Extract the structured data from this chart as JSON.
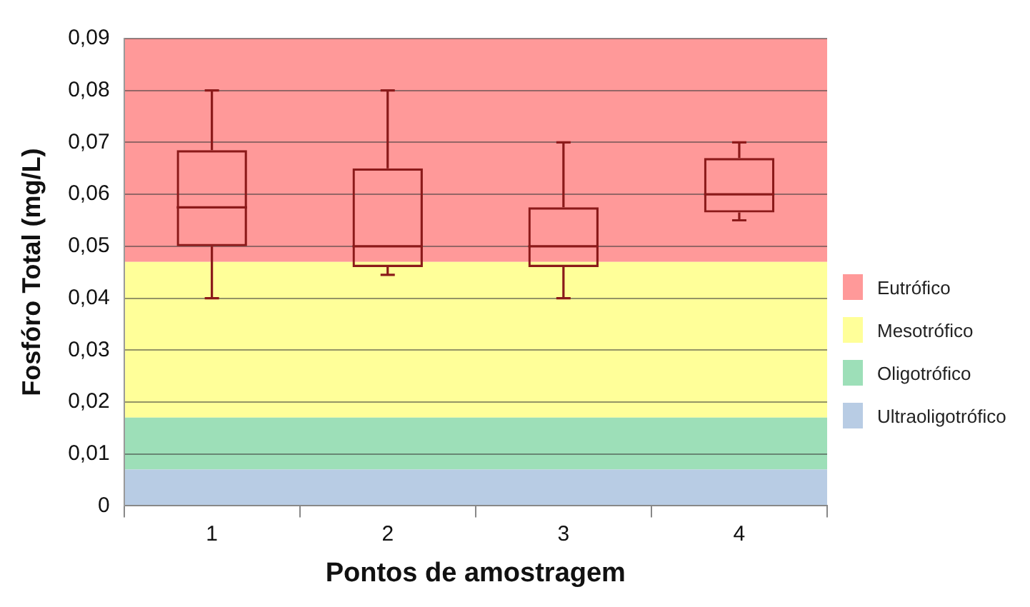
{
  "chart_data": {
    "type": "box",
    "categories": [
      "1",
      "2",
      "3",
      "4"
    ],
    "series": [
      {
        "color": "#8b1a1a",
        "boxes": [
          {
            "low": 0.04,
            "q1": 0.05,
            "median": 0.0575,
            "q3": 0.0685,
            "high": 0.08
          },
          {
            "low": 0.0445,
            "q1": 0.046,
            "median": 0.05,
            "q3": 0.065,
            "high": 0.08
          },
          {
            "low": 0.04,
            "q1": 0.046,
            "median": 0.05,
            "q3": 0.0575,
            "high": 0.07
          },
          {
            "low": 0.055,
            "q1": 0.0565,
            "median": 0.06,
            "q3": 0.067,
            "high": 0.07
          }
        ]
      }
    ],
    "xlabel": "Pontos de amostragem",
    "ylabel": "Fosfóro Total (mg/L)",
    "ylim": [
      0,
      0.09
    ],
    "yticks": [
      0,
      {
        "value": 0.01,
        "label": "0,01"
      },
      {
        "value": 0.02,
        "label": "0,02"
      },
      {
        "value": 0.03,
        "label": "0,03"
      },
      {
        "value": 0.04,
        "label": "0,04"
      },
      {
        "value": 0.05,
        "label": "0,05"
      },
      {
        "value": 0.06,
        "label": "0,06"
      },
      {
        "value": 0.07,
        "label": "0,07"
      },
      {
        "value": 0.08,
        "label": "0,08"
      },
      {
        "value": 0.09,
        "label": "0,09"
      }
    ],
    "grid": "y",
    "legend": "right",
    "bands": [
      {
        "axis": "y",
        "from": 0.047,
        "to": 0.09,
        "label": "Eutrófico",
        "color": "#ff9999"
      },
      {
        "axis": "y",
        "from": 0.017,
        "to": 0.047,
        "label": "Mesotrófico",
        "color": "#ffff99"
      },
      {
        "axis": "y",
        "from": 0.007,
        "to": 0.017,
        "label": "Oligotrófico",
        "color": "#9ddfb8"
      },
      {
        "axis": "y",
        "from": 0,
        "to": 0.007,
        "label": "Ultraoligotrófico",
        "color": "#b8cce4"
      }
    ]
  }
}
